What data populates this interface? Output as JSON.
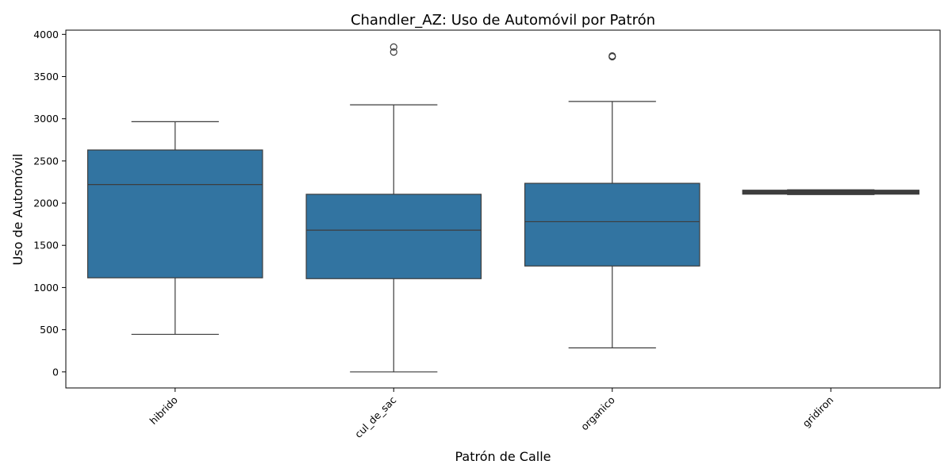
{
  "chart_data": {
    "type": "box",
    "title": "Chandler_AZ: Uso de Automóvil por Patrón",
    "xlabel": "Patrón de Calle",
    "ylabel": "Uso de Automóvil",
    "ylim": [
      -190,
      4050
    ],
    "yticks": [
      0,
      500,
      1000,
      1500,
      2000,
      2500,
      3000,
      3500,
      4000
    ],
    "grid": false,
    "box_color": "#3274a1",
    "line_color": "#3d3d3d",
    "categories": [
      "hibrido",
      "cul_de_sac",
      "organico",
      "gridiron"
    ],
    "boxes": [
      {
        "category": "hibrido",
        "whisker_low": 445,
        "q1": 1115,
        "median": 2220,
        "q3": 2630,
        "whisker_high": 2965,
        "outliers": []
      },
      {
        "category": "cul_de_sac",
        "whisker_low": 0,
        "q1": 1105,
        "median": 1680,
        "q3": 2105,
        "whisker_high": 3165,
        "outliers": [
          3790,
          3850
        ]
      },
      {
        "category": "organico",
        "whisker_low": 285,
        "q1": 1255,
        "median": 1780,
        "q3": 2235,
        "whisker_high": 3205,
        "outliers": [
          3735,
          3745
        ]
      },
      {
        "category": "gridiron",
        "whisker_low": 2110,
        "q1": 2115,
        "median": 2130,
        "q3": 2145,
        "whisker_high": 2150,
        "outliers": []
      }
    ]
  }
}
